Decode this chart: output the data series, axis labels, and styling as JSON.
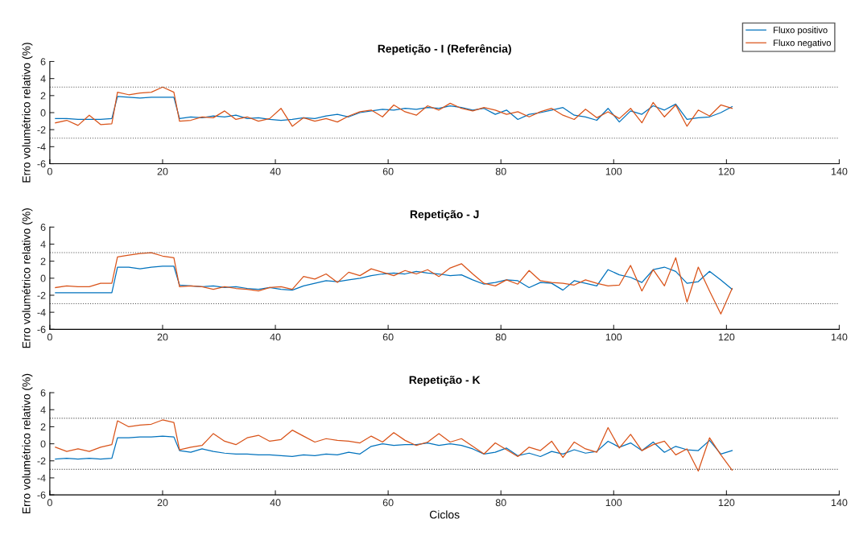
{
  "chart_data": [
    {
      "type": "line",
      "title": "Repetição - I (Referência)",
      "ylabel": "Erro volumétrico relativo (%)",
      "xlim": [
        0,
        140
      ],
      "xticks": [
        0,
        20,
        40,
        60,
        80,
        100,
        120,
        140
      ],
      "ylim": [
        -6,
        6
      ],
      "yticks": [
        -6,
        -4,
        -2,
        0,
        2,
        4,
        6
      ],
      "grid": false,
      "legend": "top right",
      "line_style": "solid",
      "marker": "none",
      "x": [
        1,
        3,
        5,
        7,
        9,
        11,
        12,
        14,
        16,
        18,
        20,
        22,
        23,
        25,
        27,
        29,
        31,
        33,
        35,
        37,
        39,
        41,
        43,
        45,
        47,
        49,
        51,
        53,
        55,
        57,
        59,
        61,
        63,
        65,
        67,
        69,
        71,
        73,
        75,
        77,
        79,
        81,
        83,
        85,
        87,
        89,
        91,
        93,
        95,
        97,
        99,
        101,
        103,
        105,
        107,
        109,
        111,
        113,
        115,
        117,
        119,
        121
      ],
      "series": [
        {
          "name": "Fluxo positivo",
          "color": "#0072bd",
          "values": [
            -0.7,
            -0.7,
            -0.8,
            -0.8,
            -0.8,
            -0.7,
            1.9,
            1.8,
            1.7,
            1.8,
            1.8,
            1.8,
            -0.7,
            -0.5,
            -0.6,
            -0.4,
            -0.5,
            -0.3,
            -0.7,
            -0.6,
            -0.8,
            -0.9,
            -0.8,
            -0.6,
            -0.7,
            -0.4,
            -0.2,
            -0.5,
            0,
            0.2,
            0.4,
            0.3,
            0.5,
            0.4,
            0.6,
            0.5,
            0.8,
            0.6,
            0.3,
            0.5,
            -0.2,
            0.3,
            -0.8,
            -0.2,
            0,
            0.3,
            0.6,
            -0.3,
            -0.5,
            -0.9,
            0.5,
            -1.1,
            0.2,
            -0.2,
            0.8,
            0.3,
            1,
            -0.8,
            -0.6,
            -0.5,
            0,
            0.7
          ]
        },
        {
          "name": "Fluxo negativo",
          "color": "#d95319",
          "values": [
            -1.2,
            -0.9,
            -1.5,
            -0.3,
            -1.4,
            -1.3,
            2.4,
            2.1,
            2.3,
            2.4,
            3.0,
            2.4,
            -1.0,
            -0.9,
            -0.5,
            -0.6,
            0.2,
            -0.8,
            -0.5,
            -1.0,
            -0.7,
            0.5,
            -1.6,
            -0.6,
            -1.0,
            -0.7,
            -1.1,
            -0.4,
            0.1,
            0.3,
            -0.5,
            0.9,
            0.1,
            -0.3,
            0.8,
            0.3,
            1.1,
            0.5,
            0.2,
            0.6,
            0.3,
            -0.2,
            0.1,
            -0.5,
            0.1,
            0.5,
            -0.3,
            -0.8,
            0.4,
            -0.6,
            0.1,
            -0.7,
            0.5,
            -1.2,
            1.2,
            -0.5,
            0.9,
            -1.6,
            0.3,
            -0.4,
            0.9,
            0.5
          ]
        }
      ],
      "ref_lines": [
        {
          "axis": "y",
          "value": 3,
          "color": "#555555",
          "line_style": "dotted"
        },
        {
          "axis": "y",
          "value": -3,
          "color": "#555555",
          "line_style": "dotted"
        }
      ]
    },
    {
      "type": "line",
      "title": "Repetição - J",
      "ylabel": "Erro volumétrico relativo (%)",
      "xlim": [
        0,
        140
      ],
      "xticks": [
        0,
        20,
        40,
        60,
        80,
        100,
        120,
        140
      ],
      "ylim": [
        -6,
        6
      ],
      "yticks": [
        -6,
        -4,
        -2,
        0,
        2,
        4,
        6
      ],
      "grid": false,
      "line_style": "solid",
      "marker": "none",
      "x": [
        1,
        3,
        5,
        7,
        9,
        11,
        12,
        14,
        16,
        18,
        20,
        22,
        23,
        25,
        27,
        29,
        31,
        33,
        35,
        37,
        39,
        41,
        43,
        45,
        47,
        49,
        51,
        53,
        55,
        57,
        59,
        61,
        63,
        65,
        67,
        69,
        71,
        73,
        75,
        77,
        79,
        81,
        83,
        85,
        87,
        89,
        91,
        93,
        95,
        97,
        99,
        101,
        103,
        105,
        107,
        109,
        111,
        113,
        115,
        117,
        119,
        121
      ],
      "series": [
        {
          "color": "#0072bd",
          "values": [
            -1.7,
            -1.7,
            -1.7,
            -1.7,
            -1.7,
            -1.7,
            1.3,
            1.3,
            1.1,
            1.3,
            1.4,
            1.4,
            -0.8,
            -0.9,
            -1.0,
            -0.9,
            -1.1,
            -1.0,
            -1.2,
            -1.3,
            -1.1,
            -1.3,
            -1.4,
            -0.9,
            -0.6,
            -0.3,
            -0.4,
            -0.2,
            0,
            0.3,
            0.5,
            0.6,
            0.5,
            0.8,
            0.6,
            0.5,
            0.3,
            0.4,
            -0.2,
            -0.7,
            -0.5,
            -0.2,
            -0.3,
            -1.1,
            -0.5,
            -0.6,
            -1.4,
            -0.3,
            -0.6,
            -0.9,
            1.0,
            0.4,
            0.1,
            -0.5,
            1.0,
            1.3,
            0.8,
            -0.6,
            -0.4,
            0.8,
            -0.2,
            -1.3
          ]
        },
        {
          "color": "#d95319",
          "values": [
            -1.1,
            -0.9,
            -1.0,
            -1.0,
            -0.6,
            -0.6,
            2.5,
            2.7,
            2.9,
            3.0,
            2.6,
            2.4,
            -1.0,
            -0.9,
            -1.0,
            -1.3,
            -1.0,
            -1.2,
            -1.3,
            -1.5,
            -1.1,
            -1.0,
            -1.3,
            0.2,
            -0.1,
            0.5,
            -0.5,
            0.7,
            0.3,
            1.1,
            0.7,
            0.3,
            0.9,
            0.5,
            1.0,
            0.2,
            1.2,
            1.7,
            0.5,
            -0.6,
            -0.9,
            -0.2,
            -0.7,
            0.9,
            -0.3,
            -0.5,
            -0.6,
            -0.8,
            -0.2,
            -0.6,
            -0.9,
            -0.8,
            1.5,
            -1.5,
            1.0,
            -0.9,
            2.4,
            -2.8,
            1.3,
            -1.5,
            -4.2,
            -1.2
          ]
        }
      ],
      "ref_lines": [
        {
          "axis": "y",
          "value": 3,
          "color": "#555555",
          "line_style": "dotted"
        },
        {
          "axis": "y",
          "value": -3,
          "color": "#555555",
          "line_style": "dotted"
        }
      ]
    },
    {
      "type": "line",
      "title": "Repetição - K",
      "xlabel": "Ciclos",
      "ylabel": "Erro volumétrico relativo (%)",
      "xlim": [
        0,
        140
      ],
      "xticks": [
        0,
        20,
        40,
        60,
        80,
        100,
        120,
        140
      ],
      "ylim": [
        -6,
        6
      ],
      "yticks": [
        -6,
        -4,
        -2,
        0,
        2,
        4,
        6
      ],
      "grid": false,
      "line_style": "solid",
      "marker": "none",
      "x": [
        1,
        3,
        5,
        7,
        9,
        11,
        12,
        14,
        16,
        18,
        20,
        22,
        23,
        25,
        27,
        29,
        31,
        33,
        35,
        37,
        39,
        41,
        43,
        45,
        47,
        49,
        51,
        53,
        55,
        57,
        59,
        61,
        63,
        65,
        67,
        69,
        71,
        73,
        75,
        77,
        79,
        81,
        83,
        85,
        87,
        89,
        91,
        93,
        95,
        97,
        99,
        101,
        103,
        105,
        107,
        109,
        111,
        113,
        115,
        117,
        119,
        121
      ],
      "series": [
        {
          "color": "#0072bd",
          "values": [
            -1.8,
            -1.7,
            -1.8,
            -1.7,
            -1.8,
            -1.7,
            0.7,
            0.7,
            0.8,
            0.8,
            0.9,
            0.8,
            -0.8,
            -1.0,
            -0.6,
            -0.9,
            -1.1,
            -1.2,
            -1.2,
            -1.3,
            -1.3,
            -1.4,
            -1.5,
            -1.3,
            -1.4,
            -1.2,
            -1.3,
            -1.0,
            -1.2,
            -0.3,
            0,
            -0.2,
            -0.1,
            -0.1,
            0.1,
            -0.2,
            0,
            -0.2,
            -0.6,
            -1.2,
            -1.0,
            -0.5,
            -1.4,
            -1.1,
            -1.5,
            -0.9,
            -1.2,
            -0.7,
            -1.1,
            -0.9,
            0.3,
            -0.4,
            0.1,
            -0.8,
            0.2,
            -1.0,
            -0.3,
            -0.7,
            -0.8,
            0.4,
            -1.2,
            -0.8
          ]
        },
        {
          "color": "#d95319",
          "values": [
            -0.4,
            -0.9,
            -0.6,
            -0.9,
            -0.4,
            -0.1,
            2.7,
            2.0,
            2.2,
            2.3,
            2.8,
            2.5,
            -0.7,
            -0.4,
            -0.2,
            1.2,
            0.3,
            -0.1,
            0.7,
            1.0,
            0.3,
            0.5,
            1.6,
            0.9,
            0.2,
            0.6,
            0.4,
            0.3,
            0.1,
            0.9,
            0.2,
            1.3,
            0.4,
            -0.2,
            0.2,
            1.2,
            0.2,
            0.6,
            -0.3,
            -1.2,
            0.1,
            -0.7,
            -1.5,
            -0.4,
            -0.8,
            0.3,
            -1.6,
            0.2,
            -0.6,
            -1.0,
            1.9,
            -0.5,
            1.1,
            -0.8,
            -0.1,
            0.3,
            -1.3,
            -0.6,
            -3.2,
            0.7,
            -1.3,
            -3.1
          ]
        }
      ],
      "ref_lines": [
        {
          "axis": "y",
          "value": 3,
          "color": "#555555",
          "line_style": "dotted"
        },
        {
          "axis": "y",
          "value": -3,
          "color": "#555555",
          "line_style": "dotted"
        }
      ]
    }
  ]
}
